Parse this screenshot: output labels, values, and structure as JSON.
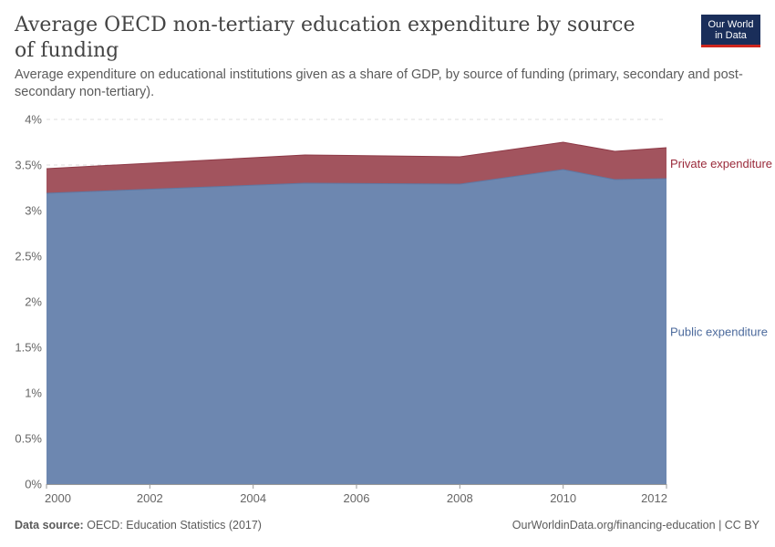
{
  "header": {
    "title": "Average OECD non-tertiary education expenditure by source of funding",
    "subtitle": "Average expenditure on educational institutions given as a share of GDP, by source of funding (primary, secondary and post-secondary non-tertiary).",
    "logo_line1": "Our World",
    "logo_line2": "in Data"
  },
  "footer": {
    "source_label": "Data source:",
    "source_text": "OECD: Education Statistics (2017)",
    "url_text": "OurWorldinData.org/financing-education | CC BY"
  },
  "colors": {
    "public": "#6d87b0",
    "private": "#a2545e",
    "public_label": "#4c6a9c",
    "private_label": "#9a2a3a"
  },
  "chart_data": {
    "type": "area",
    "stacked": true,
    "title": "Average OECD non-tertiary education expenditure by source of funding",
    "xlabel": "",
    "ylabel": "",
    "x": [
      2000,
      2005,
      2008,
      2010,
      2011,
      2012
    ],
    "xticks": [
      "2000",
      "2002",
      "2004",
      "2006",
      "2008",
      "2010",
      "2012"
    ],
    "xlim": [
      2000,
      2012
    ],
    "yticks": [
      "0%",
      "0.5%",
      "1%",
      "1.5%",
      "2%",
      "2.5%",
      "3%",
      "3.5%",
      "4%"
    ],
    "ylim": [
      0,
      4
    ],
    "series": [
      {
        "name": "Public expenditure",
        "values": [
          3.19,
          3.3,
          3.29,
          3.45,
          3.34,
          3.35
        ]
      },
      {
        "name": "Private expenditure",
        "values": [
          0.27,
          0.31,
          0.3,
          0.3,
          0.31,
          0.34
        ]
      }
    ],
    "grid": true
  }
}
